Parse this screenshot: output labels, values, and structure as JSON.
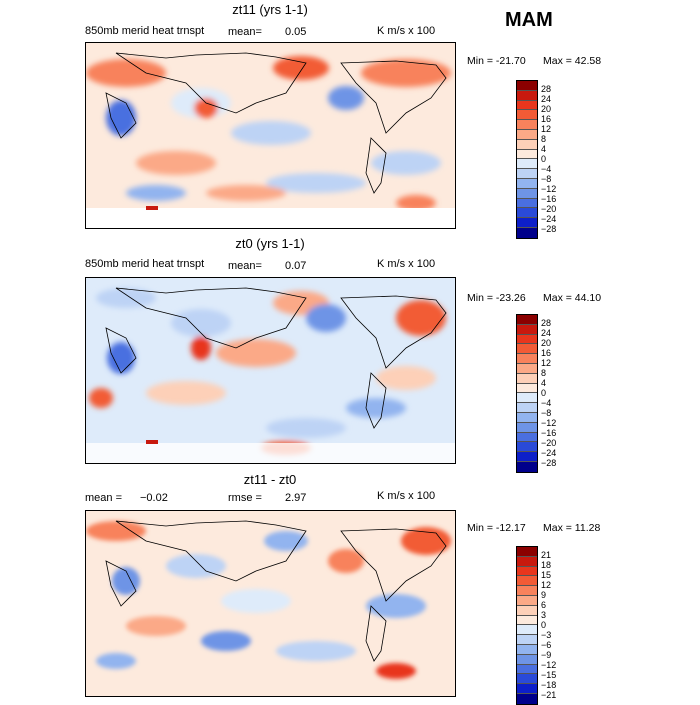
{
  "season": "MAM",
  "panels": [
    {
      "title": "zt11 (yrs 1-1)",
      "left_label": "850mb merid heat trnspt",
      "mid_label": "mean=",
      "mid_value": "0.05",
      "units": "K m/s x 100",
      "min_label": "Min = -21.70",
      "max_label": "Max =  42.58",
      "colorbar_labels": [
        "28",
        "24",
        "20",
        "16",
        "12",
        "8",
        "4",
        "0",
        "−4",
        "−8",
        "−12",
        "−16",
        "−20",
        "−24",
        "−28"
      ],
      "colorbar_colors": [
        "#8b0000",
        "#c8190e",
        "#e8361d",
        "#f25b36",
        "#f8825c",
        "#fba987",
        "#fdd0b8",
        "#fdeadd",
        "#deebfa",
        "#bdd3f5",
        "#92b4ef",
        "#6e94e6",
        "#4a6fe0",
        "#2a4ad8",
        "#0d1fc9",
        "#00008b"
      ],
      "map_type": "zonal heat transport field"
    },
    {
      "title": "zt0 (yrs 1-1)",
      "left_label": "850mb merid heat trnspt",
      "mid_label": "mean=",
      "mid_value": "0.07",
      "units": "K m/s x 100",
      "min_label": "Min = -23.26",
      "max_label": "Max =  44.10",
      "colorbar_labels": [
        "28",
        "24",
        "20",
        "16",
        "12",
        "8",
        "4",
        "0",
        "−4",
        "−8",
        "−12",
        "−16",
        "−20",
        "−24",
        "−28"
      ],
      "colorbar_colors": [
        "#8b0000",
        "#c8190e",
        "#e8361d",
        "#f25b36",
        "#f8825c",
        "#fba987",
        "#fdd0b8",
        "#fdeadd",
        "#deebfa",
        "#bdd3f5",
        "#92b4ef",
        "#6e94e6",
        "#4a6fe0",
        "#2a4ad8",
        "#0d1fc9",
        "#00008b"
      ],
      "map_type": "zonal heat transport field"
    },
    {
      "title": "zt11 - zt0",
      "left_label": "mean =",
      "left_value": "−0.02",
      "mid_label": "rmse =",
      "mid_value": "2.97",
      "units": "K m/s x 100",
      "min_label": "Min = -12.17",
      "max_label": "Max =  11.28",
      "colorbar_labels": [
        "21",
        "18",
        "15",
        "12",
        "9",
        "6",
        "3",
        "0",
        "−3",
        "−6",
        "−9",
        "−12",
        "−15",
        "−18",
        "−21"
      ],
      "colorbar_colors": [
        "#8b0000",
        "#c8190e",
        "#e8361d",
        "#f25b36",
        "#f8825c",
        "#fba987",
        "#fdd0b8",
        "#fdeadd",
        "#deebfa",
        "#bdd3f5",
        "#92b4ef",
        "#6e94e6",
        "#4a6fe0",
        "#2a4ad8",
        "#0d1fc9",
        "#00008b"
      ],
      "map_type": "difference field"
    }
  ]
}
